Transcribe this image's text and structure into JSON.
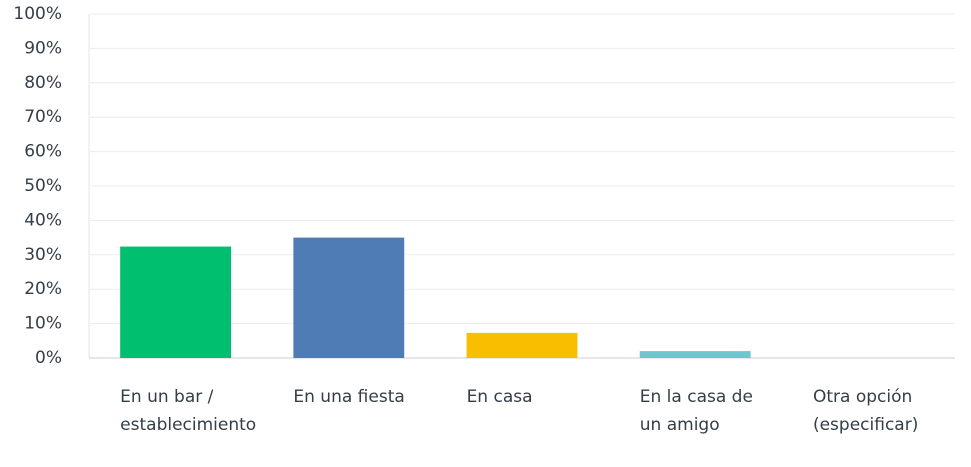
{
  "chart_data": {
    "type": "bar",
    "categories": [
      "En un bar / establecimiento",
      "En una fiesta",
      "En casa",
      "En la casa de un amigo",
      "Otra opción (especificar)"
    ],
    "values": [
      32.4,
      35,
      7.3,
      2,
      0
    ],
    "colors": [
      "#00bf6f",
      "#507cb6",
      "#f9be00",
      "#6bc8cd",
      "#a0a0a0"
    ],
    "ylim": [
      0,
      100
    ],
    "yticks": [
      {
        "value": 0,
        "label": "0%"
      },
      {
        "value": 10,
        "label": "10%"
      },
      {
        "value": 20,
        "label": "20%"
      },
      {
        "value": 30,
        "label": "30%"
      },
      {
        "value": 40,
        "label": "40%"
      },
      {
        "value": 50,
        "label": "50%"
      },
      {
        "value": 60,
        "label": "60%"
      },
      {
        "value": 70,
        "label": "70%"
      },
      {
        "value": 80,
        "label": "80%"
      },
      {
        "value": 90,
        "label": "90%"
      },
      {
        "value": 100,
        "label": "100%"
      }
    ],
    "grid": true
  }
}
